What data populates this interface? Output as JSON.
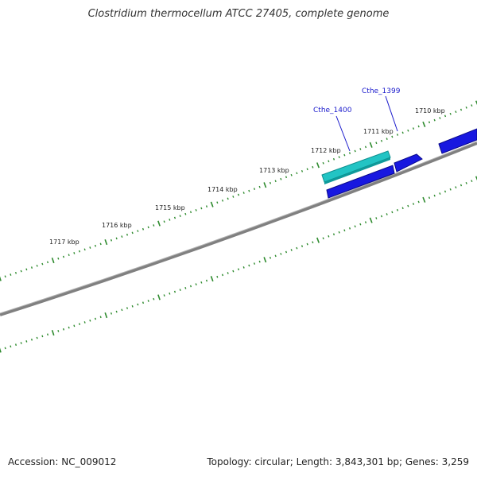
{
  "title": "Clostridium thermocellum ATCC 27405, complete genome",
  "footer": {
    "accession": "Accession: NC_009012",
    "summary": "Topology: circular; Length: 3,843,301 bp; Genes: 3,259"
  },
  "colors": {
    "backbone": "#808080",
    "tick": "#2e8b2e",
    "gene_forward": "#1818e0",
    "gene_highlight": "#22c4c4",
    "gene_label": "#1a1acc"
  },
  "kbp_labels": [
    "1717 kbp",
    "1716 kbp",
    "1715 kbp",
    "1714 kbp",
    "1713 kbp",
    "1712 kbp",
    "1711 kbp",
    "1710 kbp"
  ],
  "gene_labels": [
    {
      "name": "Cthe_1400"
    },
    {
      "name": "Cthe_1399"
    }
  ]
}
